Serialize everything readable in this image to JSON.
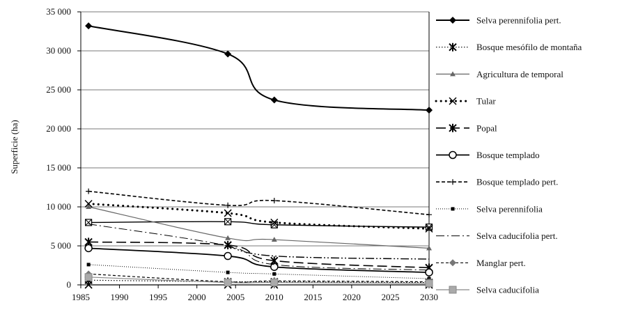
{
  "chart_data": {
    "type": "line",
    "title": "",
    "xlabel": "",
    "ylabel": "Superficie (ha)",
    "xlim": [
      1985,
      2030
    ],
    "ylim": [
      0,
      35000
    ],
    "x_ticks": [
      1985,
      1990,
      1995,
      2000,
      2005,
      2010,
      2015,
      2020,
      2025,
      2030
    ],
    "y_ticks": [
      0,
      5000,
      10000,
      15000,
      20000,
      25000,
      30000,
      35000
    ],
    "y_tick_labels": [
      "0",
      "5 000",
      "10 000",
      "15 000",
      "20 000",
      "25 000",
      "30 000",
      "35 000"
    ],
    "grid": "horizontal",
    "legend_position": "right",
    "series": [
      {
        "name": "Selva perennifolia pert.",
        "x": [
          1986,
          2004,
          2010,
          2030
        ],
        "y": [
          33200,
          29600,
          23700,
          22400
        ],
        "color": "#000000",
        "dash": "solid",
        "marker": "diamond",
        "width": 2
      },
      {
        "name": "Bosque mesófilo de montaña",
        "x": [
          1986,
          2004,
          2010,
          2030
        ],
        "y": [
          600,
          400,
          400,
          300
        ],
        "color": "#000000",
        "dash": "dotted",
        "marker": "asterisk",
        "width": 1.2
      },
      {
        "name": "Agricultura de temporal",
        "x": [
          1986,
          2004,
          2010,
          2030
        ],
        "y": [
          10000,
          6000,
          5800,
          4700
        ],
        "color": "#666666",
        "dash": "solid",
        "marker": "triangle",
        "width": 1.2
      },
      {
        "name": "Tular",
        "x": [
          1986,
          2004,
          2010,
          2030
        ],
        "y": [
          10400,
          9200,
          8000,
          7200
        ],
        "color": "#000000",
        "dash": "bigdot",
        "marker": "cross",
        "width": 3
      },
      {
        "name": "Popal",
        "x": [
          1986,
          2004,
          2010,
          2030
        ],
        "y": [
          5500,
          5100,
          3100,
          2200
        ],
        "color": "#000000",
        "dash": "longdash",
        "marker": "star",
        "width": 1.6
      },
      {
        "name": "Bosque templado",
        "x": [
          1986,
          2004,
          2010,
          2030
        ],
        "y": [
          4700,
          3700,
          2300,
          1600
        ],
        "color": "#000000",
        "dash": "solid",
        "marker": "circle",
        "width": 1.8
      },
      {
        "name": "Bosque templado pert.",
        "x": [
          1986,
          2004,
          2010,
          2030
        ],
        "y": [
          12000,
          10200,
          10800,
          9000
        ],
        "color": "#000000",
        "dash": "dashed",
        "marker": "plus",
        "width": 1.6
      },
      {
        "name": "Selva perennifolia",
        "x": [
          1986,
          2004,
          2010,
          2030
        ],
        "y": [
          2600,
          1600,
          1400,
          800
        ],
        "color": "#000000",
        "dash": "fine",
        "marker": "square-small",
        "width": 1
      },
      {
        "name": "Selva caducifolia pert.",
        "x": [
          1986,
          2004,
          2010,
          2030
        ],
        "y": [
          7800,
          5000,
          2600,
          1900
        ],
        "color": "#000000",
        "dash": "dashdot",
        "marker": "none",
        "width": 1
      },
      {
        "name": "Manglar pert.",
        "x": [
          1986,
          2004,
          2010,
          2030
        ],
        "y": [
          1400,
          400,
          500,
          400
        ],
        "color": "#000000",
        "dash": "shortdash",
        "marker": "diamond-gray",
        "width": 1.2
      },
      {
        "name": "Selva caducifolia",
        "x": [
          1986,
          2004,
          2010,
          2030
        ],
        "y": [
          1000,
          300,
          300,
          200
        ],
        "color": "#888888",
        "dash": "solid",
        "marker": "square-gray",
        "width": 1.2
      }
    ],
    "extra_lines": [
      {
        "x": [
          1986,
          2004,
          2010,
          2030
        ],
        "y": [
          8000,
          8100,
          7700,
          7400
        ],
        "color": "#000000",
        "dash": "solid",
        "marker": "square-x",
        "width": 1.4
      },
      {
        "x": [
          2004,
          2010,
          2030
        ],
        "y": [
          5000,
          3700,
          3300
        ],
        "color": "#000000",
        "dash": "dashdotdot",
        "marker": "none",
        "width": 1.4
      },
      {
        "x": [
          1986,
          2004,
          2010,
          2030
        ],
        "y": [
          0,
          0,
          0,
          0
        ],
        "color": "#000000",
        "dash": "solid",
        "marker": "x",
        "width": 1.2
      }
    ]
  }
}
